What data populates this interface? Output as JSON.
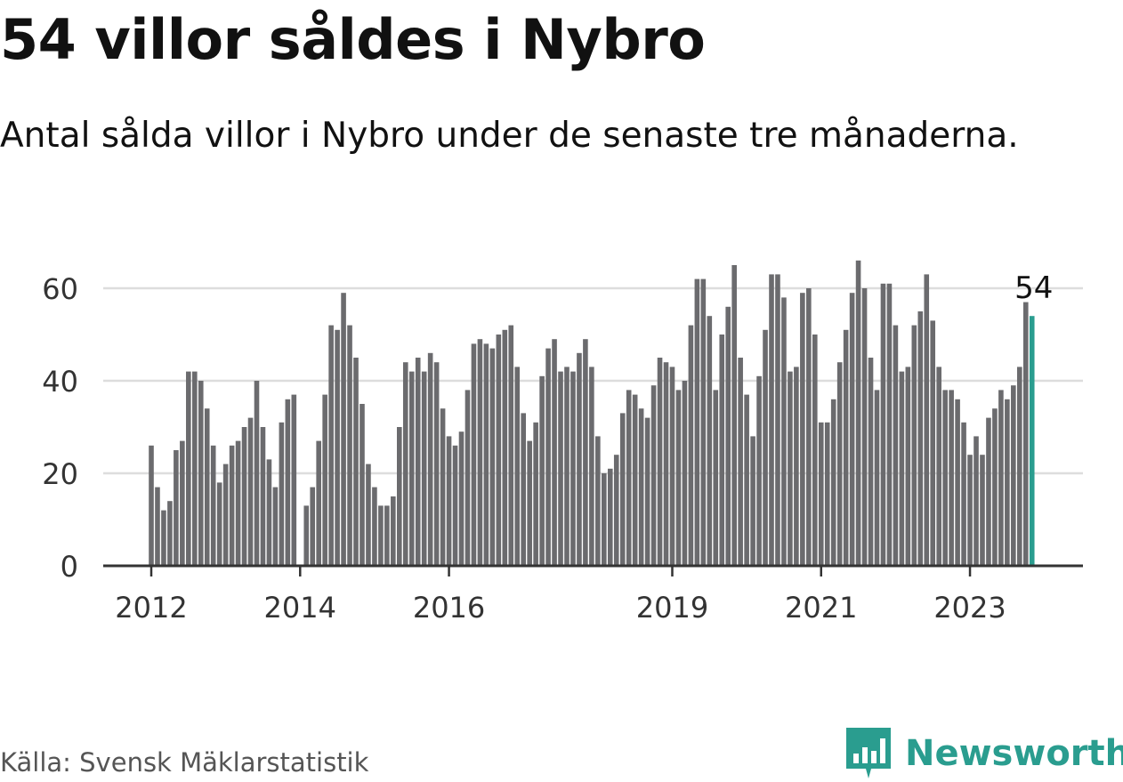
{
  "header": {
    "title": "54 villor såldes i Nybro",
    "subtitle": "Antal sålda villor i Nybro under de senaste tre månaderna."
  },
  "footer": {
    "source": "Källa: Svensk Mäklarstatistik",
    "brand": "Newsworthy"
  },
  "colors": {
    "bar": "#6b6b6e",
    "highlight": "#2a9d8f",
    "grid": "#dddddd",
    "axis": "#333333",
    "brand": "#2a9d8f"
  },
  "chart_data": {
    "type": "bar",
    "title": "54 villor såldes i Nybro",
    "subtitle": "Antal sålda villor i Nybro under de senaste tre månaderna.",
    "xlabel": "",
    "ylabel": "",
    "ylim": [
      0,
      70
    ],
    "yticks": [
      0,
      20,
      40,
      60
    ],
    "grid": true,
    "start_year": 2012,
    "xticks": [
      {
        "label": "2012",
        "index": 0
      },
      {
        "label": "2014",
        "index": 24
      },
      {
        "label": "2016",
        "index": 48
      },
      {
        "label": "2019",
        "index": 84
      },
      {
        "label": "2021",
        "index": 108
      },
      {
        "label": "2023",
        "index": 132
      }
    ],
    "annotation": {
      "label": "54",
      "index": 142
    },
    "highlight_index": 142,
    "values": [
      26,
      17,
      12,
      14,
      25,
      27,
      42,
      42,
      40,
      34,
      26,
      18,
      22,
      26,
      27,
      30,
      32,
      40,
      30,
      23,
      17,
      31,
      36,
      37,
      0,
      13,
      17,
      27,
      37,
      52,
      51,
      59,
      52,
      45,
      35,
      22,
      17,
      13,
      13,
      15,
      30,
      44,
      42,
      45,
      42,
      46,
      44,
      34,
      28,
      26,
      29,
      38,
      48,
      49,
      48,
      47,
      50,
      51,
      52,
      43,
      33,
      27,
      31,
      41,
      47,
      49,
      42,
      43,
      42,
      46,
      49,
      43,
      28,
      20,
      21,
      24,
      33,
      38,
      37,
      34,
      32,
      39,
      45,
      44,
      43,
      38,
      40,
      52,
      62,
      62,
      54,
      38,
      50,
      56,
      65,
      45,
      37,
      28,
      41,
      51,
      63,
      63,
      58,
      42,
      43,
      59,
      60,
      50,
      31,
      31,
      36,
      44,
      51,
      59,
      66,
      60,
      45,
      38,
      61,
      61,
      52,
      42,
      43,
      52,
      55,
      63,
      53,
      43,
      38,
      38,
      36,
      31,
      24,
      28,
      24,
      32,
      34,
      38,
      36,
      39,
      43,
      57,
      54
    ]
  }
}
